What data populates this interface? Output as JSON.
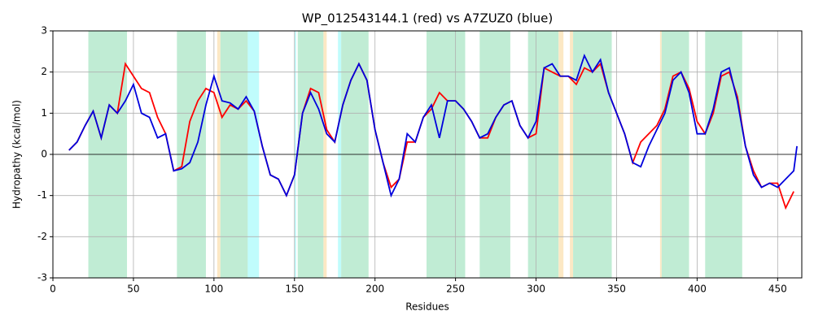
{
  "chart_data": {
    "type": "line",
    "title": "WP_012543144.1 (red) vs A7ZUZ0 (blue)",
    "xlabel": "Residues",
    "ylabel": "Hydropathy (kcal/mol)",
    "xlim": [
      0,
      465
    ],
    "ylim": [
      -3,
      3
    ],
    "xticks": [
      0,
      50,
      100,
      150,
      200,
      250,
      300,
      350,
      400,
      450
    ],
    "yticks": [
      -3,
      -2,
      -1,
      0,
      1,
      2,
      3
    ],
    "grid": true,
    "regions": [
      {
        "start": 22,
        "end": 46,
        "color": "#c0ecd4"
      },
      {
        "start": 77,
        "end": 95,
        "color": "#c0ecd4"
      },
      {
        "start": 102,
        "end": 104,
        "color": "#fce8c4"
      },
      {
        "start": 104,
        "end": 121,
        "color": "#c0ecd4"
      },
      {
        "start": 121,
        "end": 128,
        "color": "#c0fcfc"
      },
      {
        "start": 150,
        "end": 151,
        "color": "#c0fcfc"
      },
      {
        "start": 152,
        "end": 168,
        "color": "#c0ecd4"
      },
      {
        "start": 168,
        "end": 170,
        "color": "#fce8c4"
      },
      {
        "start": 177,
        "end": 179,
        "color": "#c0fcfc"
      },
      {
        "start": 179,
        "end": 196,
        "color": "#c0ecd4"
      },
      {
        "start": 232,
        "end": 256,
        "color": "#c0ecd4"
      },
      {
        "start": 265,
        "end": 284,
        "color": "#c0ecd4"
      },
      {
        "start": 295,
        "end": 314,
        "color": "#c0ecd4"
      },
      {
        "start": 314,
        "end": 317,
        "color": "#fce8c4"
      },
      {
        "start": 321,
        "end": 323,
        "color": "#fce8c4"
      },
      {
        "start": 323,
        "end": 347,
        "color": "#c0ecd4"
      },
      {
        "start": 377,
        "end": 378,
        "color": "#fce8c4"
      },
      {
        "start": 378,
        "end": 395,
        "color": "#c0ecd4"
      },
      {
        "start": 405,
        "end": 428,
        "color": "#c0ecd4"
      }
    ],
    "x": [
      10,
      15,
      20,
      25,
      30,
      35,
      40,
      45,
      50,
      55,
      60,
      65,
      70,
      75,
      80,
      85,
      90,
      95,
      100,
      105,
      110,
      115,
      120,
      125,
      130,
      135,
      140,
      145,
      150,
      155,
      160,
      165,
      170,
      175,
      180,
      185,
      190,
      195,
      200,
      205,
      210,
      215,
      220,
      225,
      230,
      235,
      240,
      245,
      250,
      255,
      260,
      265,
      270,
      275,
      280,
      285,
      290,
      295,
      300,
      305,
      310,
      315,
      320,
      325,
      330,
      335,
      340,
      345,
      350,
      355,
      360,
      365,
      370,
      375,
      380,
      385,
      390,
      395,
      400,
      405,
      410,
      415,
      420,
      425,
      430,
      435,
      440,
      445,
      450,
      455,
      460,
      462
    ],
    "series": [
      {
        "name": "WP_012543144.1",
        "color": "#ff0000",
        "values": [
          0.1,
          0.3,
          0.7,
          1.05,
          0.4,
          1.2,
          1.0,
          2.2,
          1.9,
          1.6,
          1.5,
          0.9,
          0.5,
          -0.4,
          -0.3,
          0.8,
          1.3,
          1.6,
          1.5,
          0.9,
          1.2,
          1.1,
          1.3,
          1.05,
          0.2,
          -0.5,
          -0.6,
          -1.0,
          -0.5,
          1.0,
          1.6,
          1.5,
          0.6,
          0.3,
          1.2,
          1.8,
          2.2,
          1.8,
          0.6,
          -0.2,
          -0.8,
          -0.6,
          0.3,
          0.3,
          0.9,
          1.1,
          1.5,
          1.3,
          1.3,
          1.1,
          0.8,
          0.4,
          0.4,
          0.9,
          1.2,
          1.3,
          0.7,
          0.4,
          0.5,
          2.1,
          2.0,
          1.9,
          1.9,
          1.7,
          2.1,
          2.0,
          2.2,
          1.5,
          1.0,
          0.5,
          -0.2,
          0.3,
          0.5,
          0.7,
          1.1,
          1.9,
          2.0,
          1.6,
          0.8,
          0.5,
          1.0,
          1.9,
          2.0,
          1.4,
          0.2,
          -0.4,
          -0.8,
          -0.7,
          -0.7,
          -1.3,
          -0.9,
          null
        ]
      },
      {
        "name": "A7ZUZ0",
        "color": "#0000dd",
        "values": [
          0.1,
          0.3,
          0.7,
          1.05,
          0.4,
          1.2,
          1.0,
          1.3,
          1.7,
          1.0,
          0.9,
          0.4,
          0.5,
          -0.4,
          -0.35,
          -0.2,
          0.3,
          1.2,
          1.9,
          1.3,
          1.25,
          1.1,
          1.4,
          1.05,
          0.2,
          -0.5,
          -0.6,
          -1.0,
          -0.5,
          1.0,
          1.5,
          1.1,
          0.5,
          0.3,
          1.2,
          1.8,
          2.2,
          1.8,
          0.6,
          -0.2,
          -1.0,
          -0.6,
          0.5,
          0.3,
          0.9,
          1.2,
          0.4,
          1.3,
          1.3,
          1.1,
          0.8,
          0.4,
          0.5,
          0.9,
          1.2,
          1.3,
          0.7,
          0.4,
          0.8,
          2.1,
          2.2,
          1.9,
          1.9,
          1.8,
          2.4,
          2.0,
          2.3,
          1.5,
          1.0,
          0.5,
          -0.2,
          -0.3,
          0.2,
          0.6,
          1.0,
          1.8,
          2.0,
          1.5,
          0.5,
          0.5,
          1.1,
          2.0,
          2.1,
          1.3,
          0.2,
          -0.5,
          -0.8,
          -0.7,
          -0.8,
          -0.6,
          -0.4,
          0.2
        ]
      }
    ]
  }
}
